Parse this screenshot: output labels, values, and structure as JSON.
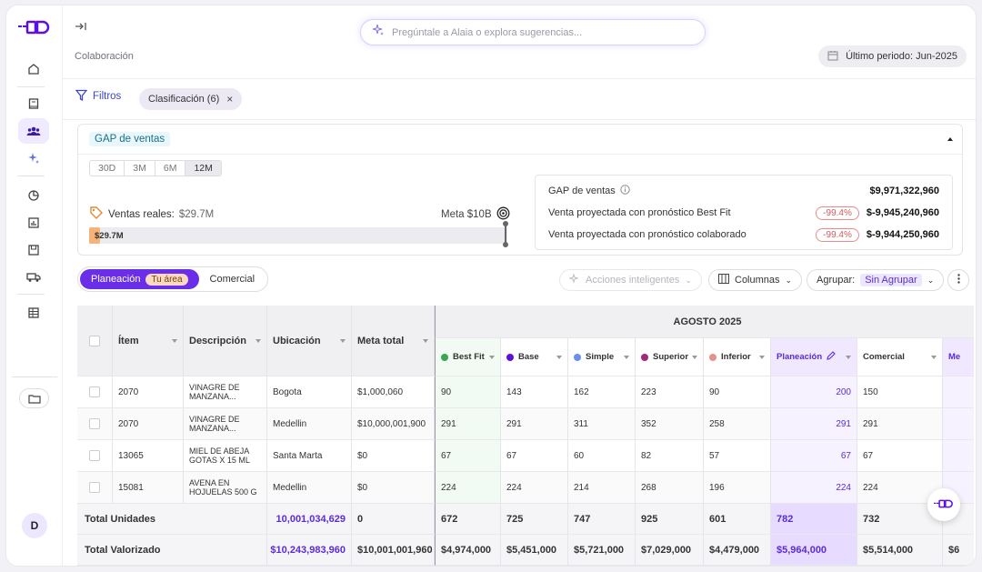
{
  "header": {
    "search_placeholder": "Pregúntale a Alaia o explora sugerencias...",
    "breadcrumb": "Colaboración",
    "period_label": "Último periodo: Jun-2025"
  },
  "filters": {
    "label": "Filtros",
    "chip_label": "Clasificación (6)",
    "chip_close": "×"
  },
  "gap": {
    "title": "GAP de ventas",
    "ranges": [
      "30D",
      "3M",
      "6M",
      "12M"
    ],
    "selected_range": "12M",
    "ventas_reales_label": "Ventas reales:",
    "ventas_reales_value": "$29.7M",
    "meta_label": "Meta $10B",
    "bar_value": "$29.7M",
    "bar_fraction": 0.003,
    "summary": [
      {
        "label": "GAP de ventas",
        "pct": "",
        "value": "$9,971,322,960"
      },
      {
        "label": "Venta proyectada con pronóstico Best Fit",
        "pct": "-99.4%",
        "value": "$-9,945,240,960"
      },
      {
        "label": "Venta proyectada con pronóstico colaborado",
        "pct": "-99.4%",
        "value": "$-9,944,250,960"
      }
    ]
  },
  "toolbar": {
    "tab_planeacion": "Planeación",
    "tab_tag": "Tu área",
    "tab_comercial": "Comercial",
    "acciones": "Acciones inteligentes",
    "columnas": "Columnas",
    "agrupar_label": "Agrupar:",
    "agrupar_value": "Sin Agrupar"
  },
  "table": {
    "month": "AGOSTO 2025",
    "headers": {
      "item": "Ítem",
      "desc": "Descripción",
      "ubic": "Ubicación",
      "meta": "Meta total"
    },
    "series": [
      {
        "name": "Best Fit",
        "color": "#3aa655"
      },
      {
        "name": "Base",
        "color": "#5b10e0"
      },
      {
        "name": "Simple",
        "color": "#6c8ef2"
      },
      {
        "name": "Superior",
        "color": "#a4287a"
      },
      {
        "name": "Inferior",
        "color": "#e3938a"
      },
      {
        "name": "Planeación",
        "color": "#5b2bd8"
      },
      {
        "name": "Comercial",
        "color": ""
      },
      {
        "name": "Me",
        "color": ""
      }
    ],
    "rows": [
      {
        "item": "2070",
        "desc1": "VINAGRE DE",
        "desc2": "MANZANA...",
        "ubic": "Bogota",
        "meta": "$1,000,060",
        "vals": [
          "90",
          "143",
          "162",
          "223",
          "90",
          "200",
          "150",
          ""
        ]
      },
      {
        "item": "2070",
        "desc1": "VINAGRE DE",
        "desc2": "MANZANA...",
        "ubic": "Medellin",
        "meta": "$10,000,001,900",
        "vals": [
          "291",
          "291",
          "311",
          "352",
          "258",
          "291",
          "291",
          ""
        ]
      },
      {
        "item": "13065",
        "desc1": "MIEL DE ABEJA",
        "desc2": "GOTAS X 15 ML",
        "ubic": "Santa Marta",
        "meta": "$0",
        "vals": [
          "67",
          "67",
          "60",
          "82",
          "57",
          "67",
          "67",
          ""
        ]
      },
      {
        "item": "15081",
        "desc1": "AVENA EN",
        "desc2": "HOJUELAS 500 G",
        "ubic": "Medellin",
        "meta": "$0",
        "vals": [
          "224",
          "224",
          "214",
          "268",
          "196",
          "224",
          "224",
          ""
        ]
      }
    ],
    "totals": [
      {
        "label": "Total Unidades",
        "sum": "10,001,034,629",
        "meta": "0",
        "vals": [
          "672",
          "725",
          "747",
          "925",
          "601",
          "782",
          "732",
          ""
        ]
      },
      {
        "label": "Total Valorizado",
        "sum": "$10,243,983,960",
        "meta": "$10,001,001,960",
        "vals": [
          "$4,974,000",
          "$5,451,000",
          "$5,721,000",
          "$7,029,000",
          "$4,479,000",
          "$5,964,000",
          "$5,514,000",
          "$6"
        ]
      }
    ]
  },
  "user": {
    "initial": "D"
  }
}
